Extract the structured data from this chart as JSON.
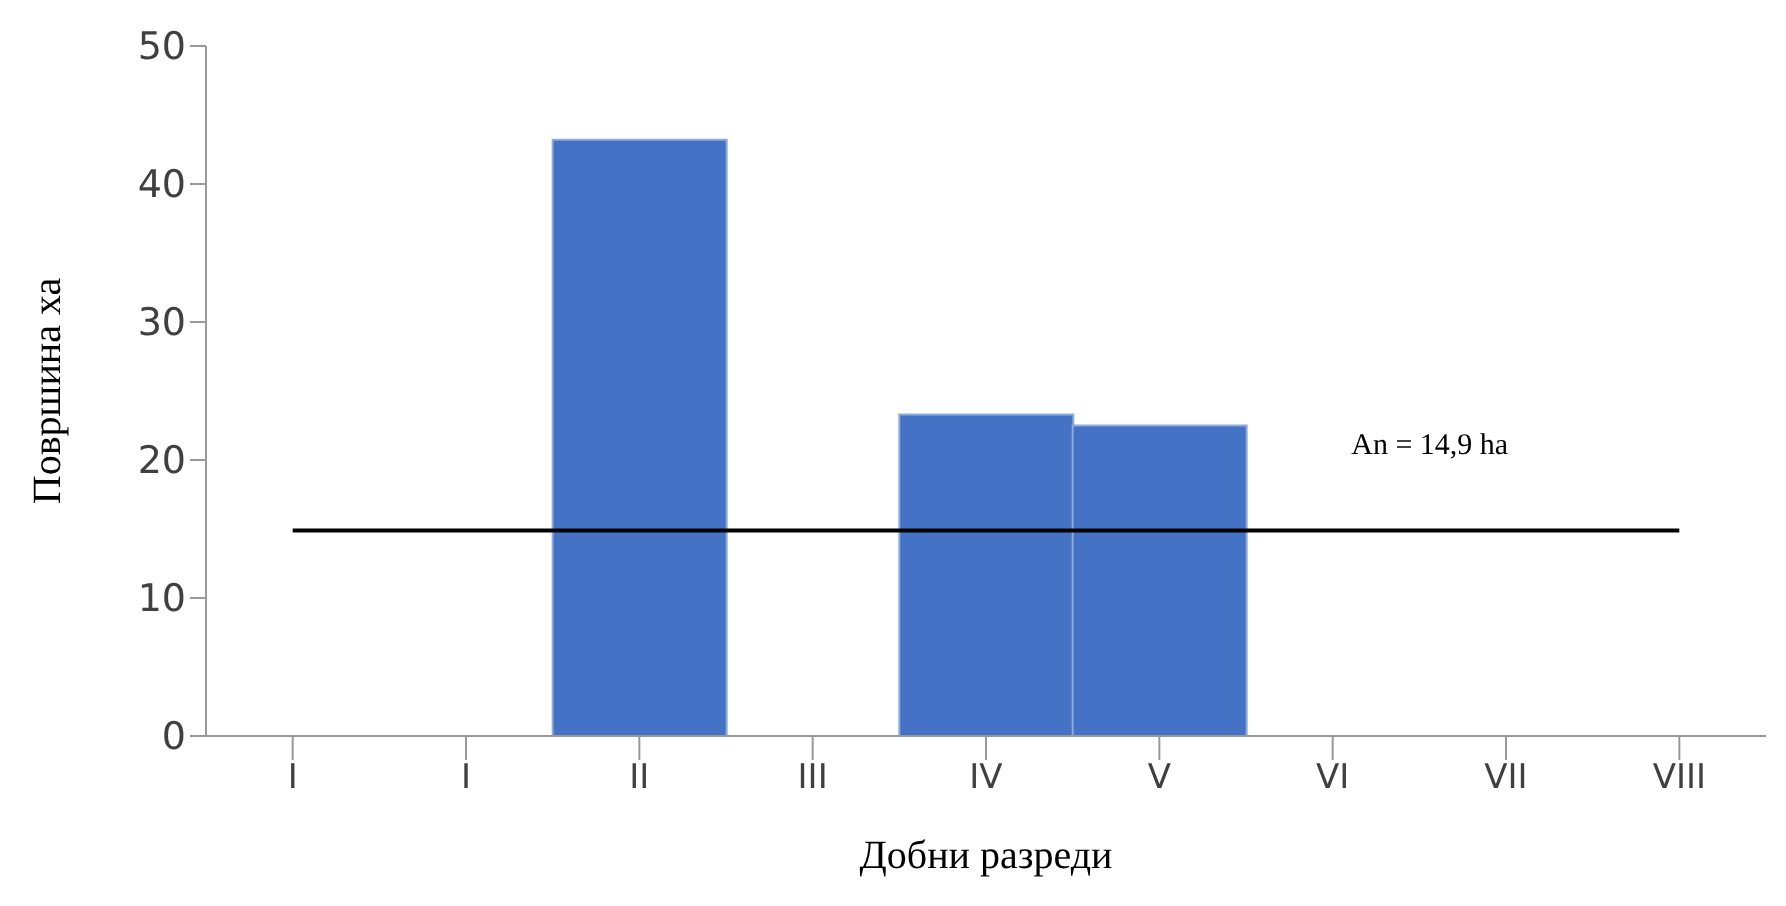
{
  "chart_data": {
    "type": "bar",
    "xlabel": "Добни разреди",
    "ylabel": "Површина ха",
    "categories": [
      "I",
      "I",
      "II",
      "III",
      "IV",
      "V",
      "VI",
      "VII",
      "VIII"
    ],
    "values": [
      0,
      0,
      43.2,
      0,
      23.3,
      22.5,
      0,
      0,
      0
    ],
    "color": "#4472c4",
    "ylim": [
      0,
      50
    ],
    "yticks": [
      0,
      10,
      20,
      30,
      40,
      50
    ],
    "grid": false,
    "ref_lines": [
      {
        "axis": "y",
        "value": 14.9,
        "label": "An = 14,9 ha",
        "color": "#000000"
      }
    ]
  }
}
